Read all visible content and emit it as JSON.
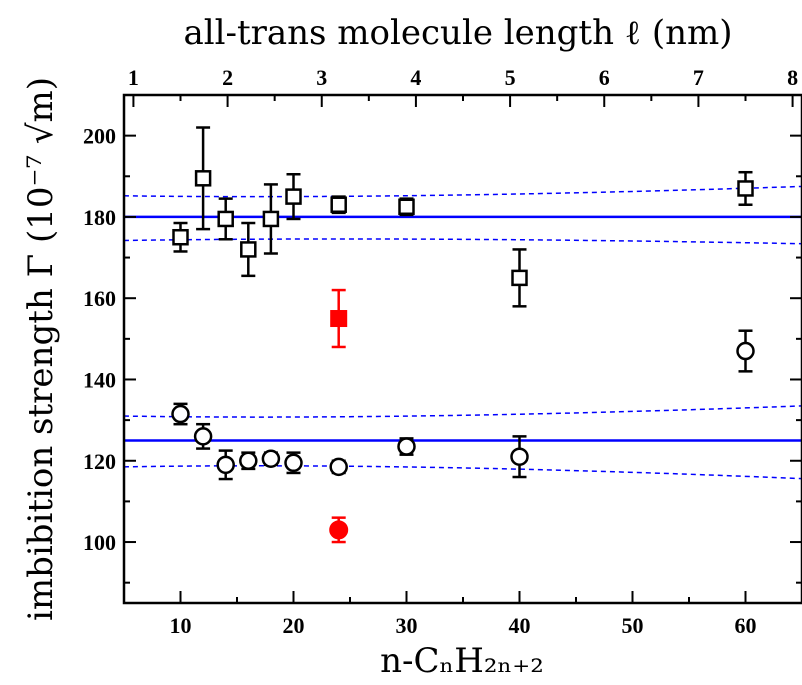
{
  "chart_data": {
    "type": "scatter",
    "title": "",
    "xlabel": "n-CₙH₂ₙ₊₂",
    "top_xlabel": "all-trans molecule length ℓ (nm)",
    "ylabel": "imbibition strength Γ (10⁻⁷ √m)",
    "xlim": [
      5,
      65
    ],
    "ylim": [
      85,
      210
    ],
    "top_xlim": [
      0.9,
      8.1
    ],
    "grid": false,
    "legend": "none",
    "x_ticks": [
      10,
      20,
      30,
      40,
      50,
      60
    ],
    "y_ticks": [
      100,
      120,
      140,
      160,
      180,
      200
    ],
    "top_ticks": [
      1,
      2,
      3,
      4,
      5,
      6,
      7,
      8
    ],
    "series": [
      {
        "marker": "open-square",
        "color": "#000000",
        "points": [
          {
            "x": 10,
            "y": 175,
            "err": 3.5
          },
          {
            "x": 12,
            "y": 189.5,
            "err": 12.5
          },
          {
            "x": 14,
            "y": 179.5,
            "err": 5
          },
          {
            "x": 16,
            "y": 172,
            "err": 6.5
          },
          {
            "x": 18,
            "y": 179.5,
            "err": 8.5
          },
          {
            "x": 20,
            "y": 185,
            "err": 5.5
          },
          {
            "x": 24,
            "y": 183,
            "err": 2
          },
          {
            "x": 30,
            "y": 182.5,
            "err": 2
          },
          {
            "x": 40,
            "y": 165,
            "err": 7
          },
          {
            "x": 60,
            "y": 187,
            "err": 4
          }
        ]
      },
      {
        "marker": "open-circle",
        "color": "#000000",
        "points": [
          {
            "x": 10,
            "y": 131.5,
            "err": 2.5
          },
          {
            "x": 12,
            "y": 126,
            "err": 3
          },
          {
            "x": 14,
            "y": 119,
            "err": 3.5
          },
          {
            "x": 16,
            "y": 120,
            "err": 2
          },
          {
            "x": 18,
            "y": 120.5,
            "err": 1.5
          },
          {
            "x": 20,
            "y": 119.5,
            "err": 2.5
          },
          {
            "x": 24,
            "y": 118.5,
            "err": 1.5
          },
          {
            "x": 30,
            "y": 123.5,
            "err": 2
          },
          {
            "x": 40,
            "y": 121,
            "err": 5
          },
          {
            "x": 60,
            "y": 147,
            "err": 5
          }
        ]
      },
      {
        "marker": "filled-square",
        "color": "#ff0000",
        "points": [
          {
            "x": 24,
            "y": 155,
            "err": 7
          }
        ]
      },
      {
        "marker": "filled-circle",
        "color": "#ff0000",
        "points": [
          {
            "x": 24,
            "y": 103,
            "err": 3
          }
        ]
      }
    ],
    "fits": [
      {
        "y": 180,
        "band": {
          "lower": [
            174.2,
            173.4
          ],
          "upper": [
            185.2,
            187.5
          ]
        },
        "color": "#0000ff"
      },
      {
        "y": 125,
        "band": {
          "lower": [
            118.5,
            115.6
          ],
          "upper": [
            131,
            133.5
          ]
        },
        "color": "#0000ff"
      }
    ]
  }
}
